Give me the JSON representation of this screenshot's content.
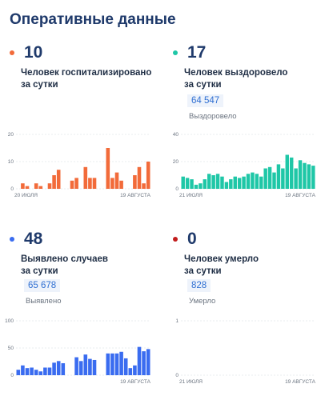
{
  "title": "Оперативные данные",
  "cards": [
    {
      "value": "10",
      "caption_line1": "Человек госпитализировано",
      "caption_line2": "за сутки",
      "color": "#f26b3a",
      "total": "",
      "total_label": ""
    },
    {
      "value": "17",
      "caption_line1": "Человек выздоровело",
      "caption_line2": "за сутки",
      "color": "#1fc7a7",
      "total": "64 547",
      "total_label": "Выздоровело"
    },
    {
      "value": "48",
      "caption_line1": "Выявлено случаев",
      "caption_line2": "за сутки",
      "color": "#3a6cf0",
      "total": "65 678",
      "total_label": "Выявлено"
    },
    {
      "value": "0",
      "caption_line1": "Человек умерло",
      "caption_line2": "за сутки",
      "color": "#c21d1d",
      "total": "828",
      "total_label": "Умерло"
    }
  ],
  "chart_data": [
    {
      "type": "bar",
      "x_start_label": "20 ИЮЛЯ",
      "x_end_label": "19 АВГУСТА",
      "yticks": [
        "20",
        "10",
        "0"
      ],
      "ylim": [
        0,
        20
      ],
      "color": "#f26b3a",
      "values": [
        0,
        2,
        1,
        0,
        2,
        1,
        0,
        2,
        5,
        7,
        0,
        0,
        3,
        4,
        0,
        8,
        4,
        4,
        0,
        0,
        15,
        4,
        6,
        3,
        0,
        0,
        5,
        8,
        2,
        10
      ]
    },
    {
      "type": "bar",
      "x_start_label": "21 ИЮЛЯ",
      "x_end_label": "19 АВГУСТА",
      "yticks": [
        "40",
        "20",
        "0"
      ],
      "ylim": [
        0,
        40
      ],
      "color": "#1fc7a7",
      "values": [
        9,
        8,
        7,
        3,
        4,
        7,
        11,
        10,
        11,
        9,
        5,
        7,
        9,
        8,
        9,
        11,
        12,
        11,
        9,
        15,
        16,
        12,
        18,
        15,
        25,
        23,
        15,
        21,
        19,
        18,
        17
      ]
    },
    {
      "type": "bar",
      "x_start_label": "",
      "x_end_label": "19 АВГУСТА",
      "yticks": [
        "100",
        "50",
        "0"
      ],
      "ylim": [
        0,
        100
      ],
      "color": "#3a6cf0",
      "values": [
        10,
        18,
        13,
        14,
        10,
        7,
        14,
        14,
        23,
        26,
        22,
        0,
        0,
        33,
        26,
        38,
        30,
        28,
        0,
        0,
        40,
        40,
        40,
        43,
        31,
        13,
        18,
        52,
        44,
        48
      ]
    },
    {
      "type": "bar",
      "x_start_label": "21 ИЮЛЯ",
      "x_end_label": "19 АВГУСТА",
      "yticks": [
        "1",
        "0"
      ],
      "ylim": [
        0,
        1
      ],
      "color": "#c21d1d",
      "values": []
    }
  ]
}
